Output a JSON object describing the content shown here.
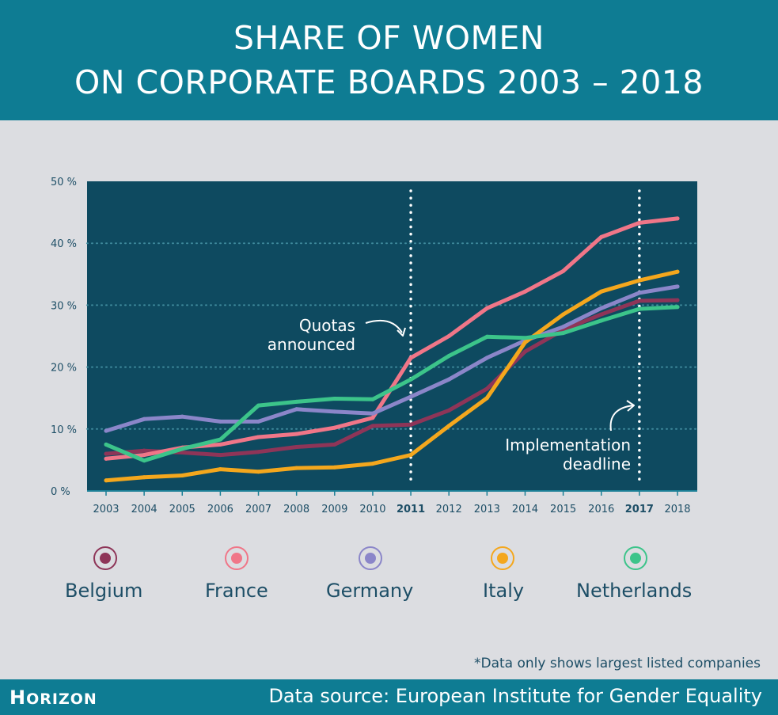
{
  "title": {
    "line1": "SHARE OF WOMEN",
    "line2": "ON CORPORATE BOARDS 2003 – 2018"
  },
  "chart_data": {
    "type": "line",
    "title": "SHARE OF WOMEN ON CORPORATE BOARDS 2003 – 2018",
    "xlabel": "",
    "ylabel": "",
    "x": [
      "2003",
      "2004",
      "2005",
      "2006",
      "2007",
      "2008",
      "2009",
      "2010",
      "2011",
      "2012",
      "2013",
      "2014",
      "2015",
      "2016",
      "2017",
      "2018"
    ],
    "bold_ticks": [
      "2011",
      "2017"
    ],
    "y_ticks": [
      0,
      10,
      20,
      30,
      40,
      50
    ],
    "y_tick_labels": [
      "0 %",
      "10 %",
      "20 %",
      "30 %",
      "40 %",
      "50 %"
    ],
    "ylim": [
      0,
      50
    ],
    "grid": true,
    "series": [
      {
        "name": "Belgium",
        "color": "#8e3558",
        "values": [
          6.0,
          6.5,
          6.2,
          5.8,
          6.3,
          7.1,
          7.5,
          10.5,
          10.7,
          13.0,
          16.5,
          22.5,
          26.0,
          28.5,
          30.7,
          30.8
        ]
      },
      {
        "name": "France",
        "color": "#f07688",
        "values": [
          5.2,
          5.8,
          7.0,
          7.5,
          8.7,
          9.2,
          10.2,
          11.8,
          21.5,
          25.0,
          29.5,
          32.2,
          35.5,
          41.0,
          43.3,
          44.0
        ]
      },
      {
        "name": "Germany",
        "color": "#8b86c9",
        "values": [
          9.7,
          11.6,
          12.0,
          11.2,
          11.2,
          13.2,
          12.8,
          12.5,
          15.2,
          18.0,
          21.5,
          24.3,
          26.5,
          29.5,
          32.0,
          33.0
        ]
      },
      {
        "name": "Italy",
        "color": "#f4a71d",
        "values": [
          1.7,
          2.2,
          2.5,
          3.5,
          3.1,
          3.7,
          3.8,
          4.4,
          5.8,
          10.5,
          15.0,
          24.0,
          28.5,
          32.2,
          34.0,
          35.4
        ]
      },
      {
        "name": "Netherlands",
        "color": "#3cc48a",
        "values": [
          7.5,
          4.9,
          6.8,
          8.3,
          13.8,
          14.4,
          14.9,
          14.8,
          18.0,
          21.8,
          24.9,
          24.7,
          25.5,
          27.5,
          29.4,
          29.7
        ]
      }
    ],
    "markers": [
      {
        "x": "2011",
        "label_lines": [
          "Quotas",
          "announced"
        ]
      },
      {
        "x": "2017",
        "label_lines": [
          "Implementation",
          "deadline"
        ]
      }
    ]
  },
  "legend": [
    {
      "name": "Belgium",
      "color": "#8e3558"
    },
    {
      "name": "France",
      "color": "#f07688"
    },
    {
      "name": "Germany",
      "color": "#8b86c9"
    },
    {
      "name": "Italy",
      "color": "#f4a71d"
    },
    {
      "name": "Netherlands",
      "color": "#3cc48a"
    }
  ],
  "footnote": "*Data only shows largest listed companies",
  "footer": {
    "logo_first": "H",
    "logo_rest": "ORIZON",
    "source": "Data source: European Institute for Gender Equality"
  },
  "colors": {
    "header_bg": "#0e7c93",
    "plot_bg": "#0e4a60",
    "page_bg": "#dcdde1",
    "axis_text": "#1d4e66"
  }
}
